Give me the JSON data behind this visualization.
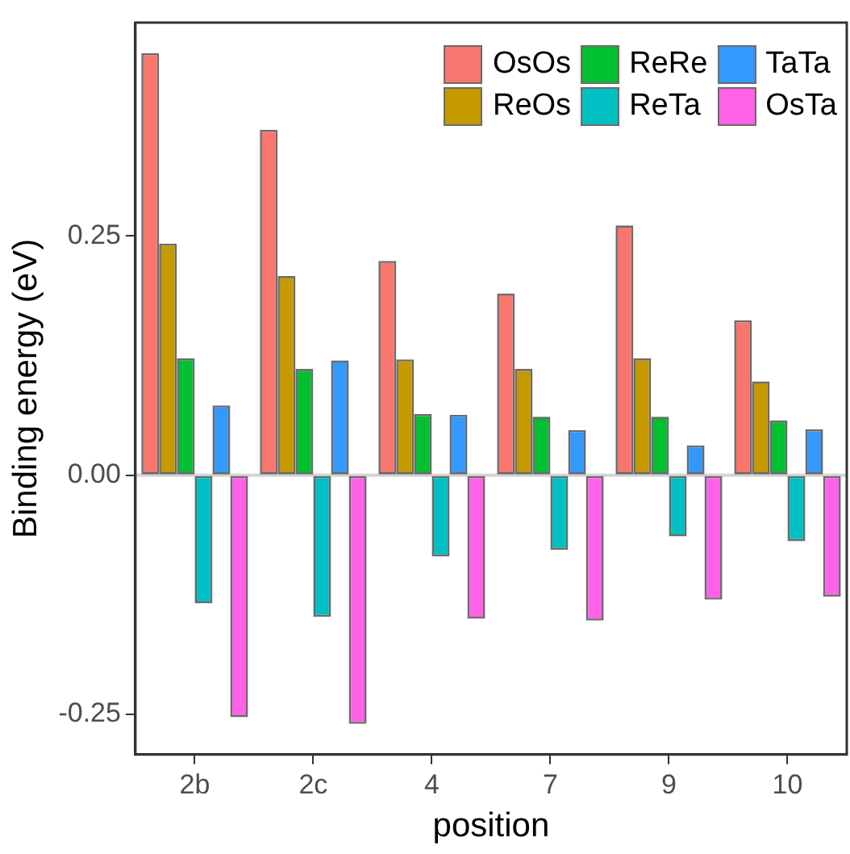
{
  "chart_data": {
    "type": "bar",
    "xlabel": "position",
    "ylabel": "Binding energy (eV)",
    "categories": [
      "2b",
      "2c",
      "4",
      "7",
      "9",
      "10"
    ],
    "series": [
      {
        "name": "OsOs",
        "color": "#f8766d",
        "values": [
          0.441,
          0.361,
          0.224,
          0.19,
          0.261,
          0.162
        ]
      },
      {
        "name": "ReOs",
        "color": "#c49a00",
        "values": [
          0.242,
          0.208,
          0.121,
          0.111,
          0.122,
          0.098
        ]
      },
      {
        "name": "ReRe",
        "color": "#00c031",
        "values": [
          0.122,
          0.111,
          0.064,
          0.061,
          0.061,
          0.057
        ]
      },
      {
        "name": "ReTa",
        "color": "#00c0c4",
        "values": [
          -0.134,
          -0.148,
          -0.085,
          -0.078,
          -0.064,
          -0.069
        ]
      },
      {
        "name": "TaTa",
        "color": "#3399ff",
        "values": [
          0.073,
          0.12,
          0.063,
          0.047,
          0.031,
          0.048
        ]
      },
      {
        "name": "OsTa",
        "color": "#ff62e6",
        "values": [
          -0.253,
          -0.26,
          -0.15,
          -0.152,
          -0.13,
          -0.127
        ]
      }
    ],
    "ylim": [
      -0.292,
      0.473
    ],
    "yticks": [
      -0.25,
      {
        "value": 0,
        "label": "0.00"
      },
      0.25
    ],
    "ref_lines": [
      {
        "axis": "y",
        "value": 0,
        "color": "#d4d4d4"
      }
    ],
    "legend": "top right",
    "grid": false
  }
}
